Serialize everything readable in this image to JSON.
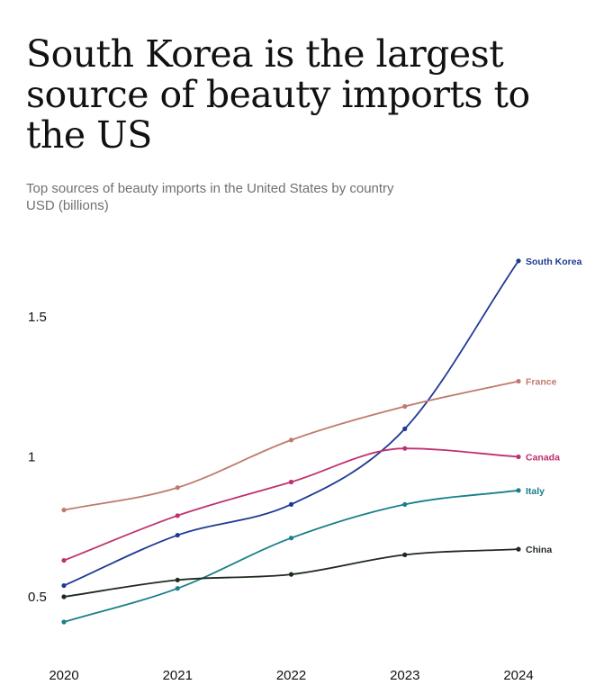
{
  "header": {
    "title": "South Korea is the largest source of beauty imports to the US",
    "subtitle": "Top sources of beauty imports in the United States by country",
    "units": "USD (billions)"
  },
  "chart_data": {
    "type": "line",
    "title": "South Korea is the largest source of beauty imports to the US",
    "subtitle": "Top sources of beauty imports in the United States by country",
    "ylabel": "USD (billions)",
    "xlabel": "",
    "x": [
      2020,
      2021,
      2022,
      2023,
      2024
    ],
    "x_tick_labels": [
      "2020",
      "2021",
      "2022",
      "2023",
      "2024"
    ],
    "y_ticks": [
      0.5,
      1,
      1.5
    ],
    "y_tick_labels": [
      "0.5",
      "1",
      "1.5"
    ],
    "ylim": [
      0.4,
      1.7
    ],
    "grid": false,
    "legend": "inline labels at line ends",
    "series": [
      {
        "name": "South Korea",
        "color": "#1f3a93",
        "values": [
          0.54,
          0.72,
          0.83,
          1.1,
          1.7
        ]
      },
      {
        "name": "France",
        "color": "#c07a6e",
        "values": [
          0.81,
          0.89,
          1.06,
          1.18,
          1.27
        ]
      },
      {
        "name": "Canada",
        "color": "#c0306e",
        "values": [
          0.63,
          0.79,
          0.91,
          1.03,
          1.0
        ]
      },
      {
        "name": "Italy",
        "color": "#1a7f8a",
        "values": [
          0.41,
          0.53,
          0.71,
          0.83,
          0.88
        ]
      },
      {
        "name": "China",
        "color": "#1f2a1f",
        "values": [
          0.5,
          0.56,
          0.58,
          0.65,
          0.67
        ]
      }
    ]
  }
}
